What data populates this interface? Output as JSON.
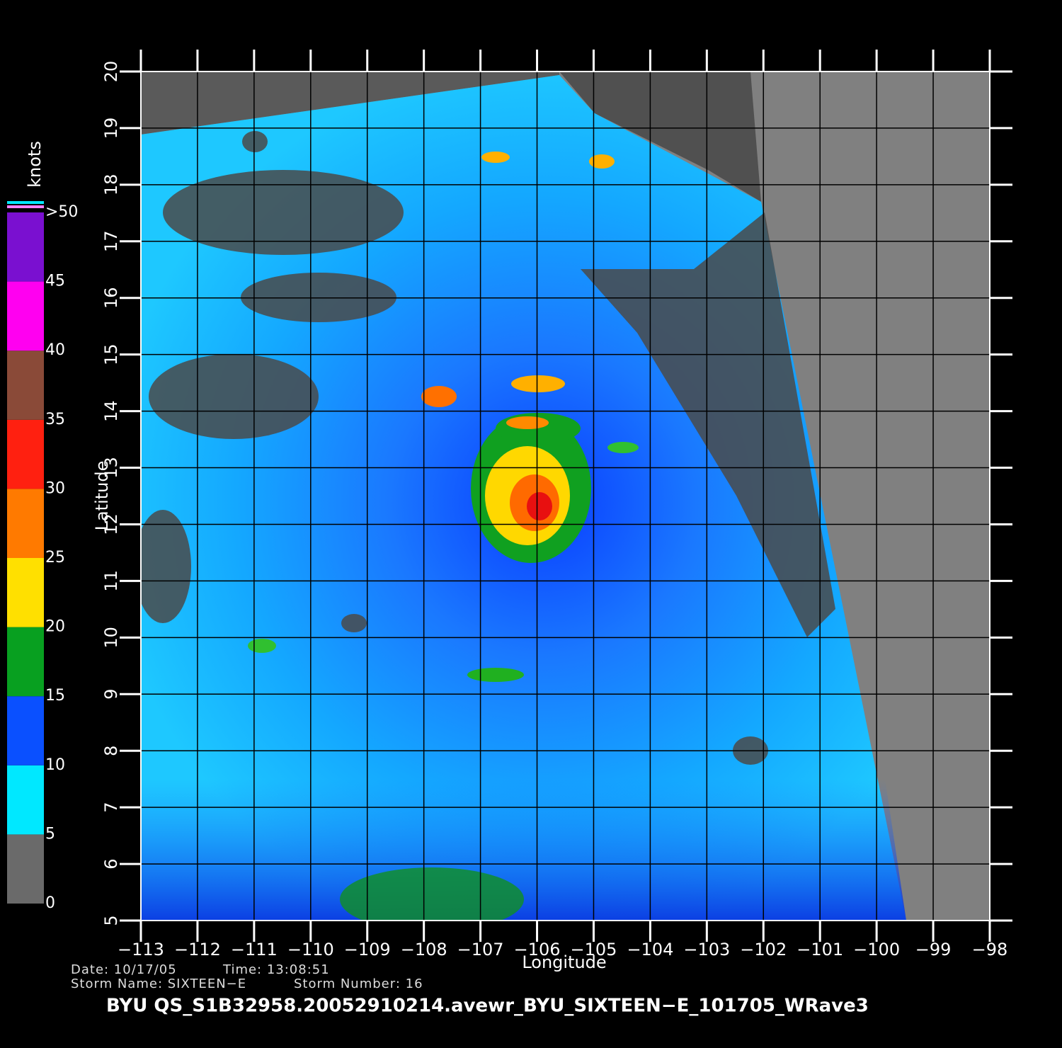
{
  "x_axis": {
    "label": "Longitude",
    "lim": [
      -113,
      -98
    ],
    "ticks": [
      {
        "value": -113,
        "label": "−113"
      },
      {
        "value": -112,
        "label": "−112"
      },
      {
        "value": -111,
        "label": "−111"
      },
      {
        "value": -110,
        "label": "−110"
      },
      {
        "value": -109,
        "label": "−109"
      },
      {
        "value": -108,
        "label": "−108"
      },
      {
        "value": -107,
        "label": "−107"
      },
      {
        "value": -106,
        "label": "−106"
      },
      {
        "value": -105,
        "label": "−105"
      },
      {
        "value": -104,
        "label": "−104"
      },
      {
        "value": -103,
        "label": "−103"
      },
      {
        "value": -102,
        "label": "−102"
      },
      {
        "value": -101,
        "label": "−101"
      },
      {
        "value": -100,
        "label": "−100"
      },
      {
        "value": -99,
        "label": "−99"
      },
      {
        "value": -98,
        "label": "−98"
      }
    ]
  },
  "y_axis": {
    "label": "Latitude",
    "lim": [
      5,
      20
    ],
    "ticks": [
      5,
      6,
      7,
      8,
      9,
      10,
      11,
      12,
      13,
      14,
      15,
      16,
      17,
      18,
      19,
      20
    ]
  },
  "colorbar": {
    "title": "knots",
    "ticks": [
      0,
      5,
      10,
      15,
      20,
      25,
      30,
      35,
      40,
      45,
      {
        "value": 50,
        "label": ">50"
      }
    ],
    "colors": [
      "#6a6a6a",
      "#00e8ff",
      "#0a50ff",
      "#08a020",
      "#ffe000",
      "#ff7a00",
      "#ff2010",
      "#8a4a38",
      "#ff00f0",
      "#7a10d0"
    ]
  },
  "footer": {
    "date": "Date: 10/17/05",
    "time": "Time: 13:08:51",
    "storm_name": "Storm Name: SIXTEEN−E",
    "storm_number": "Storm Number: 16",
    "title": "BYU  QS_S1B32958.20052910214.avewr_BYU_SIXTEEN−E_101705_WRave3"
  }
}
